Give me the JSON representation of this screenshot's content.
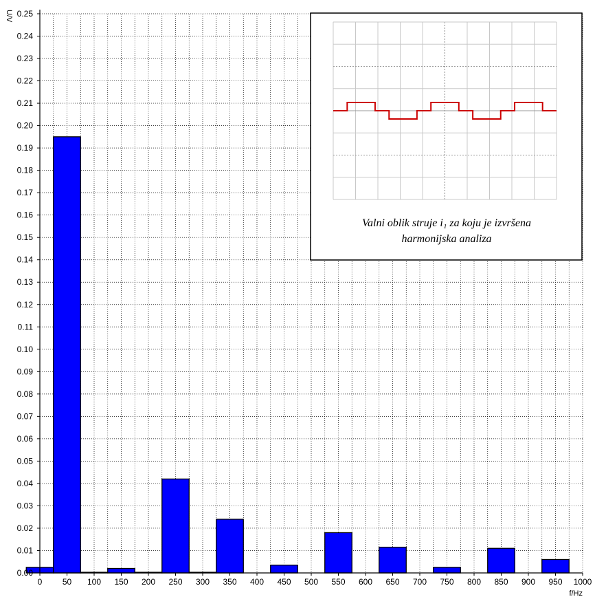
{
  "chart_data": {
    "type": "bar",
    "xlabel": "f/Hz",
    "ylabel": "U/V",
    "xlim": [
      0,
      1000
    ],
    "ylim": [
      0,
      0.25
    ],
    "x_ticks": [
      0,
      50,
      100,
      150,
      200,
      250,
      300,
      350,
      400,
      450,
      500,
      550,
      600,
      650,
      700,
      750,
      800,
      850,
      900,
      950,
      1000
    ],
    "y_ticks": [
      "0.00",
      "0.01",
      "0.02",
      "0.03",
      "0.04",
      "0.05",
      "0.06",
      "0.07",
      "0.08",
      "0.09",
      "0.10",
      "0.11",
      "0.12",
      "0.13",
      "0.14",
      "0.15",
      "0.16",
      "0.17",
      "0.18",
      "0.19",
      "0.20",
      "0.21",
      "0.22",
      "0.23",
      "0.24",
      "0.25"
    ],
    "bar_width": 50,
    "bars": [
      {
        "x": 0,
        "value": 0.0025
      },
      {
        "x": 50,
        "value": 0.195
      },
      {
        "x": 100,
        "value": 0.0003
      },
      {
        "x": 150,
        "value": 0.002
      },
      {
        "x": 200,
        "value": 0.0003
      },
      {
        "x": 250,
        "value": 0.042
      },
      {
        "x": 300,
        "value": 0.0003
      },
      {
        "x": 350,
        "value": 0.024
      },
      {
        "x": 450,
        "value": 0.0035
      },
      {
        "x": 550,
        "value": 0.018
      },
      {
        "x": 650,
        "value": 0.0115
      },
      {
        "x": 750,
        "value": 0.0025
      },
      {
        "x": 850,
        "value": 0.011
      },
      {
        "x": 950,
        "value": 0.006
      }
    ],
    "bar_color": "#0000ff",
    "grid": true,
    "inset": {
      "caption_lines": [
        "Valni oblik struje i₁ za koju je izvršena",
        "harmonijska analiza"
      ],
      "waveform_color": "#cc0000",
      "waveform_levels": [
        0,
        1,
        1,
        0,
        -1,
        -1,
        0,
        1,
        1,
        0,
        -1,
        -1,
        0,
        1,
        1,
        0
      ]
    }
  }
}
